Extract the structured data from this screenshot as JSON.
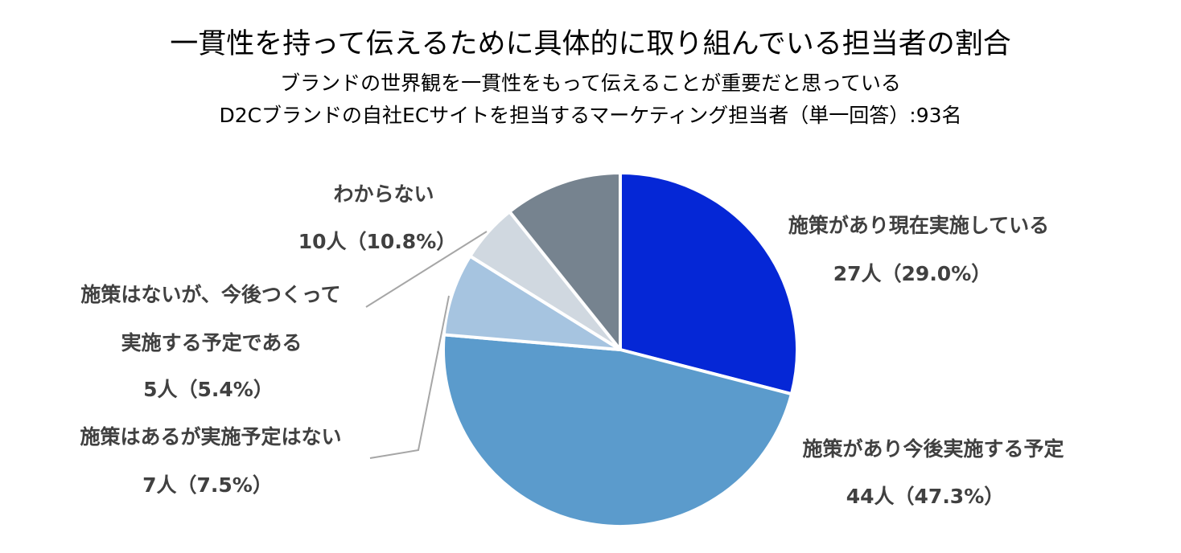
{
  "chart_data": {
    "type": "pie",
    "title": "一貫性を持って伝えるために具体的に取り組んでいる担当者の割合",
    "subtitle": [
      "ブランドの世界観を一貫性をもって伝えることが重要だと思っている",
      "D2Cブランドの自社ECサイトを担当するマーケティング担当者（単一回答）:93名"
    ],
    "slices": [
      {
        "label": "施策があり現在実施している",
        "count": 27,
        "count_text": "27人（29.0%）",
        "percent": 29.0,
        "color": "#0527d6"
      },
      {
        "label": "施策があり今後実施する予定",
        "count": 44,
        "count_text": "44人（47.3%）",
        "percent": 47.3,
        "color": "#5b9bcc"
      },
      {
        "label": "施策はあるが実施予定はない",
        "count": 7,
        "count_text": "7人（7.5%）",
        "percent": 7.5,
        "color": "#a6c4e0"
      },
      {
        "label": "施策はないが、今後つくって実施する予定である",
        "label_lines": [
          "施策はないが、今後つくって",
          "実施する予定である"
        ],
        "count": 5,
        "count_text": "5人（5.4%）",
        "percent": 5.4,
        "color": "#d0d8e0"
      },
      {
        "label": "わからない",
        "count": 10,
        "count_text": "10人（10.8%）",
        "percent": 10.8,
        "color": "#76838f"
      }
    ]
  }
}
